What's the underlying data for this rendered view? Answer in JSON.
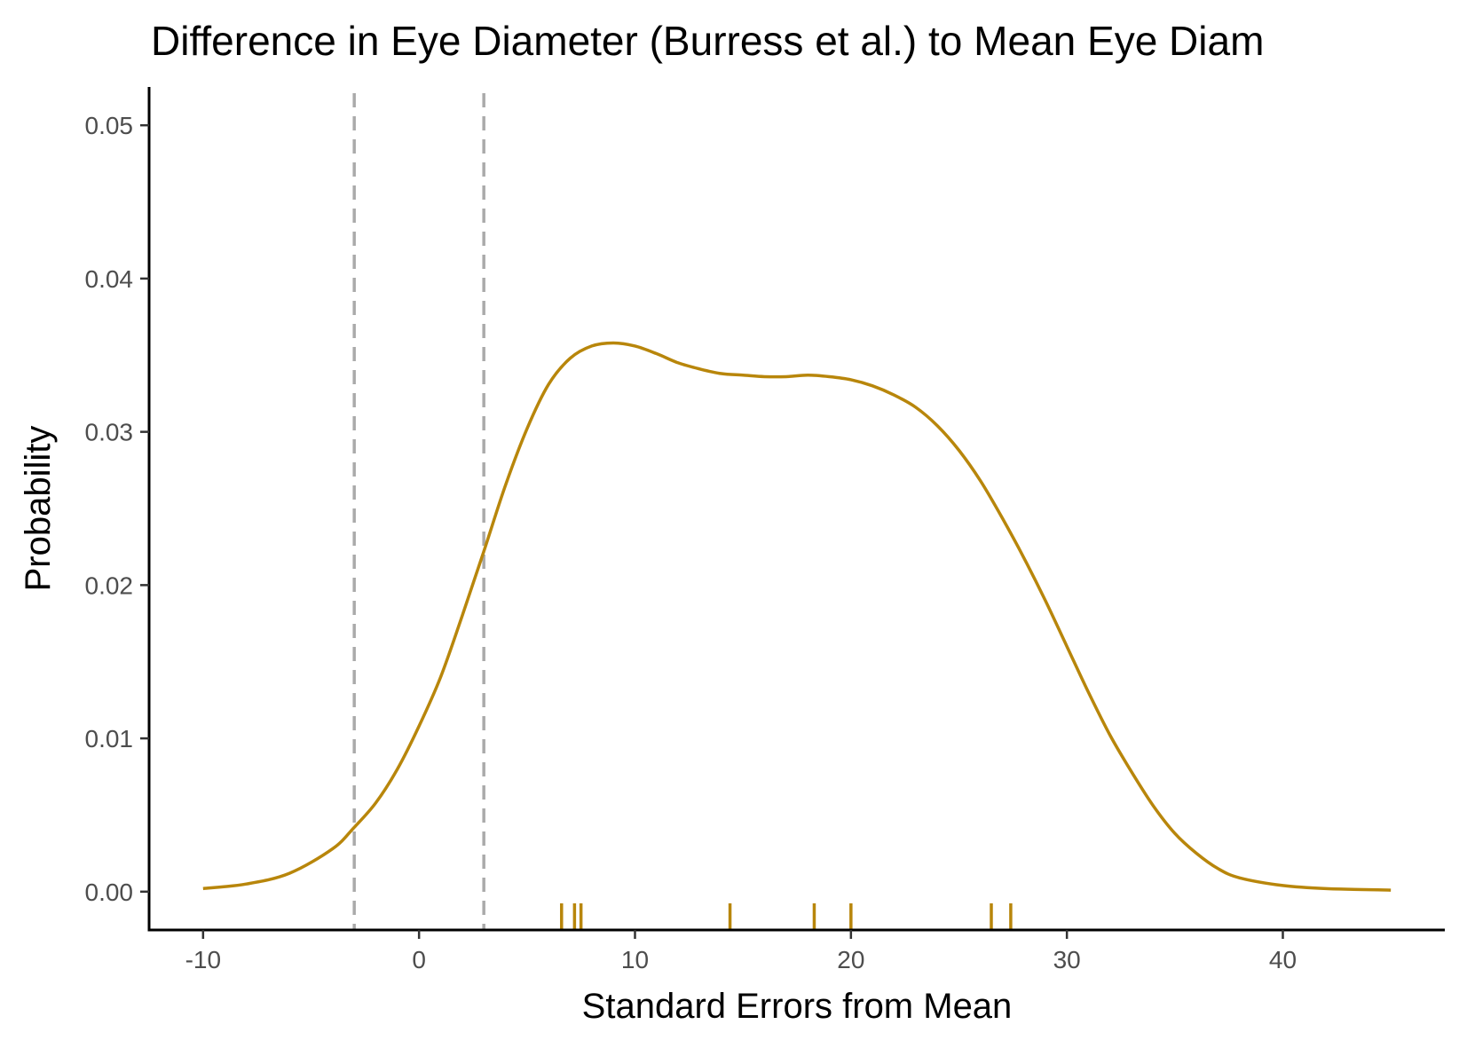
{
  "chart_data": {
    "type": "line",
    "title": "Difference in Eye Diameter (Burress et al.) to Mean Eye Diam",
    "xlabel": "Standard Errors from Mean",
    "ylabel": "Probability",
    "xlim": [
      -12.5,
      47.5
    ],
    "ylim": [
      -0.0025,
      0.0525
    ],
    "x_ticks": [
      -10,
      0,
      10,
      20,
      30,
      40
    ],
    "x_tick_labels": [
      "-10",
      "0",
      "10",
      "20",
      "30",
      "40"
    ],
    "y_ticks": [
      0,
      0.01,
      0.02,
      0.03,
      0.04,
      0.05
    ],
    "y_tick_labels": [
      "0.00",
      "0.01",
      "0.02",
      "0.03",
      "0.04",
      "0.05"
    ],
    "grid": false,
    "series": [
      {
        "color": "#b8860b",
        "x": [
          -10,
          -8,
          -6,
          -4,
          -3,
          -2,
          -1,
          0,
          1,
          2,
          3,
          4,
          5,
          6,
          7,
          8,
          9,
          10,
          11,
          12,
          13,
          14,
          15,
          16,
          17,
          18,
          19,
          20,
          21,
          22,
          23,
          24,
          25,
          26,
          27,
          28,
          29,
          30,
          31,
          32,
          33,
          34,
          35,
          36,
          37,
          38,
          40,
          42,
          45
        ],
        "y": [
          0.0002,
          0.0005,
          0.0012,
          0.0028,
          0.0042,
          0.0058,
          0.008,
          0.0108,
          0.014,
          0.018,
          0.0222,
          0.0265,
          0.0302,
          0.0331,
          0.0348,
          0.0356,
          0.0358,
          0.0356,
          0.0351,
          0.0345,
          0.0341,
          0.0338,
          0.0337,
          0.0336,
          0.0336,
          0.0337,
          0.0336,
          0.0334,
          0.033,
          0.0324,
          0.0316,
          0.0304,
          0.0288,
          0.0268,
          0.0244,
          0.0218,
          0.019,
          0.016,
          0.013,
          0.0102,
          0.0078,
          0.0056,
          0.0038,
          0.0025,
          0.0015,
          0.0009,
          0.0004,
          0.0002,
          0.0001
        ]
      }
    ],
    "rug": {
      "color": "#b8860b",
      "x": [
        6.6,
        7.2,
        7.5,
        14.4,
        18.3,
        20.0,
        26.5,
        27.4
      ]
    },
    "reference_lines": {
      "color": "#aaaaaa",
      "style": "dashed",
      "x": [
        -3,
        3
      ]
    }
  }
}
